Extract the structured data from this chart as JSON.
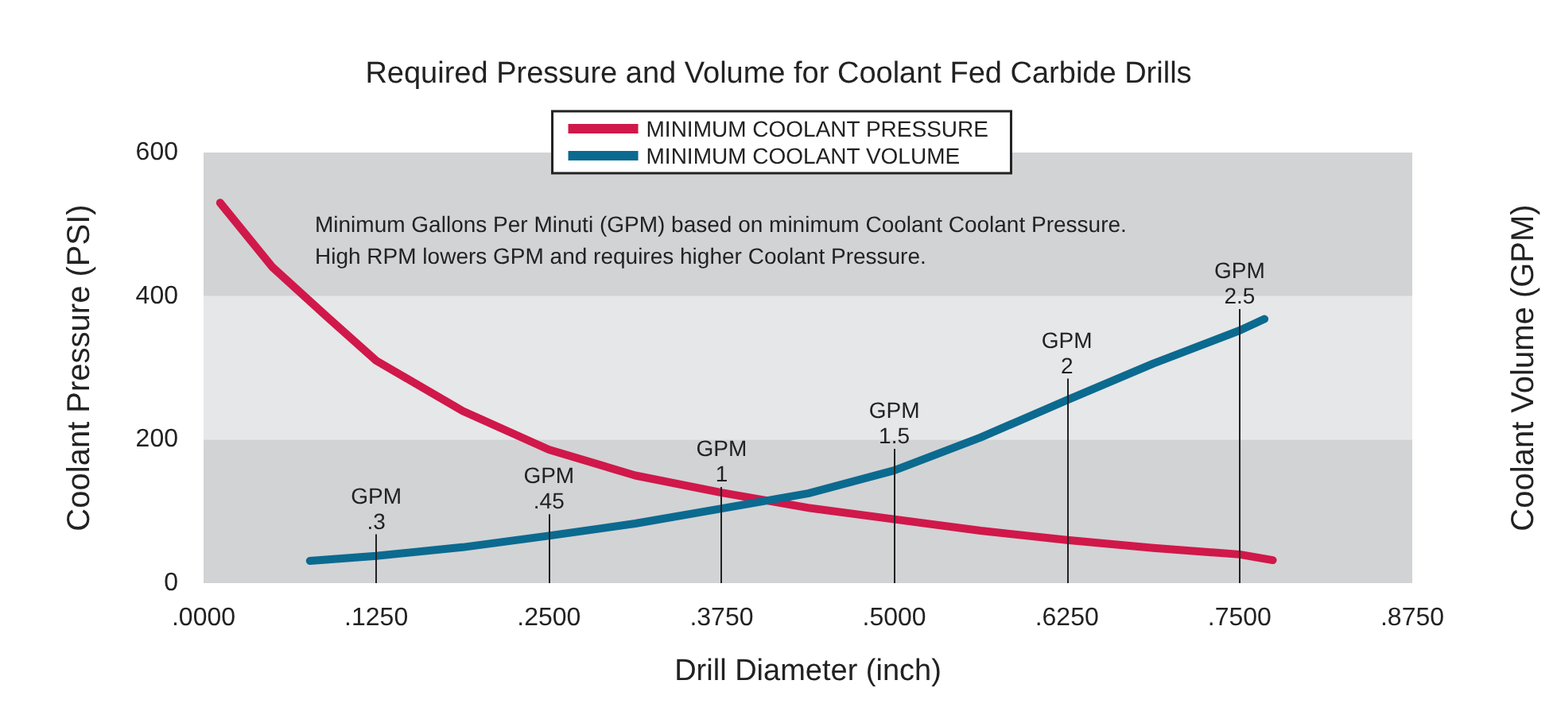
{
  "chart_data": {
    "type": "line",
    "title": "Required Pressure and Volume for Coolant Fed Carbide Drills",
    "xlabel": "Drill Diameter (inch)",
    "ylabel": "Coolant Pressure (PSI)",
    "y2label": "Coolant Volume (GPM)",
    "annotations": [
      "Minimum Gallons Per Minuti (GPM) based on minimum Coolant Coolant Pressure.",
      "High RPM lowers GPM and requires higher Coolant Pressure."
    ],
    "series": [
      {
        "name": "MINIMUM COOLANT PRESSURE",
        "color": "#d0184a",
        "x": [
          0.012,
          0.05,
          0.09,
          0.125,
          0.1875,
          0.25,
          0.3125,
          0.375,
          0.4375,
          0.5,
          0.5625,
          0.625,
          0.6875,
          0.75,
          0.774
        ],
        "values": [
          530,
          440,
          370,
          310,
          240,
          186,
          150,
          126,
          105,
          89,
          73,
          60,
          49,
          40,
          32
        ]
      },
      {
        "name": "MINIMUM COOLANT VOLUME",
        "color": "#0b6a8f",
        "x": [
          0.077,
          0.125,
          0.1875,
          0.25,
          0.3125,
          0.375,
          0.4375,
          0.5,
          0.5625,
          0.625,
          0.6875,
          0.75,
          0.768
        ],
        "values": [
          31,
          38,
          50,
          66,
          83,
          104,
          125,
          157,
          203,
          255,
          306,
          352,
          368
        ],
        "value_labels": [
          null,
          "GPM\n.3",
          null,
          "GPM\n.45",
          null,
          "GPM\n1",
          null,
          "GPM\n1.5",
          null,
          "GPM\n2",
          null,
          "GPM\n2.5",
          null
        ]
      }
    ],
    "xlim": [
      0,
      0.875
    ],
    "xticks": [
      {
        "value": 0,
        "label": ".0000"
      },
      {
        "value": 0.125,
        "label": ".1250"
      },
      {
        "value": 0.25,
        "label": ".2500"
      },
      {
        "value": 0.375,
        "label": ".3750"
      },
      {
        "value": 0.5,
        "label": ".5000"
      },
      {
        "value": 0.625,
        "label": ".6250"
      },
      {
        "value": 0.75,
        "label": ".7500"
      },
      {
        "value": 0.875,
        "label": ".8750"
      }
    ],
    "ylim": [
      0,
      600
    ],
    "yticks": [
      0,
      200,
      400,
      600
    ],
    "bands": [
      {
        "axis": "y",
        "from": 0,
        "to": 200,
        "color": "#d2d3d5"
      },
      {
        "axis": "y",
        "from": 200,
        "to": 400,
        "color": "#e6e7e8"
      },
      {
        "axis": "y",
        "from": 400,
        "to": 600,
        "color": "#d2d3d5"
      }
    ],
    "legend": "top",
    "grid": false,
    "marker": "none",
    "line_style": "solid"
  }
}
